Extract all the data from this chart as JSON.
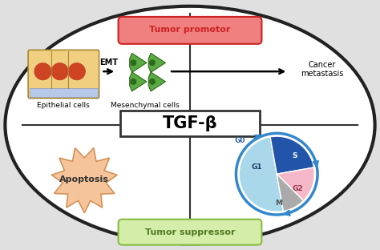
{
  "bg_color": "#e8e8e8",
  "ellipse_color": "#222222",
  "ellipse_fill": "#ffffff",
  "divider_color": "#333333",
  "tumor_promotor_text": "Tumor promotor",
  "tumor_promotor_bg": "#f08080",
  "tumor_promotor_edge": "#cc2222",
  "tumor_suppressor_text": "Tumor suppressor",
  "tumor_suppressor_bg": "#d4eeaa",
  "tumor_suppressor_edge": "#88bb44",
  "tumor_suppressor_text_color": "#557722",
  "tgf_text": "TGF-β",
  "tgf_box_color": "#333333",
  "emt_text": "EMT",
  "epithelial_text": "Epithelial cells",
  "mesenchymal_text": "Mesenchymal cells",
  "cancer_text": "Cancer\nmetastasis",
  "apoptosis_text": "Apoptosis",
  "apoptosis_color": "#f5c49a",
  "apoptosis_edge": "#d4935a",
  "apoptosis_text_color": "#333333",
  "cell_g1_color": "#a8d8ea",
  "cell_s_color": "#2255aa",
  "cell_g2_color": "#f4b8c8",
  "cell_m_color": "#aaaaaa",
  "cell_outline_color": "#3388cc",
  "cell_g0_text_color": "#3366aa",
  "fig_bg": "#e0e0e0"
}
